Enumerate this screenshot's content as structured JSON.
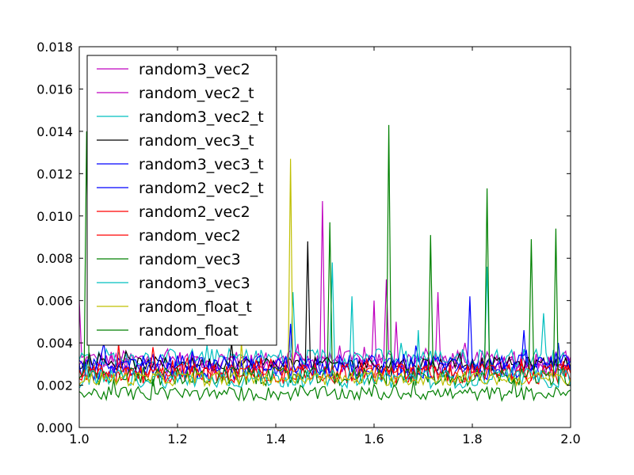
{
  "chart_data": {
    "type": "line",
    "title": "",
    "xlabel": "",
    "ylabel": "",
    "xlim": [
      1.0,
      2.0
    ],
    "ylim": [
      0.0,
      0.018
    ],
    "grid": false,
    "legend_position": "upper-left",
    "x_ticks": [
      "1.0",
      "1.2",
      "1.4",
      "1.6",
      "1.8",
      "2.0"
    ],
    "y_ticks": [
      "0.000",
      "0.002",
      "0.004",
      "0.006",
      "0.008",
      "0.010",
      "0.012",
      "0.014",
      "0.016",
      "0.018"
    ],
    "x_tick_values": [
      1.0,
      1.2,
      1.4,
      1.6,
      1.8,
      2.0
    ],
    "y_tick_values": [
      0.0,
      0.002,
      0.004,
      0.006,
      0.008,
      0.01,
      0.012,
      0.014,
      0.016,
      0.018
    ],
    "x_start": 1.0,
    "x_end": 2.0,
    "points_per_series": 201,
    "series": [
      {
        "name": "random3_vec2",
        "color": "#bf00bf",
        "base": 0.0032,
        "noise": 0.0002,
        "spikes": [
          [
            1.0,
            0.006
          ],
          [
            1.495,
            0.0107
          ],
          [
            1.625,
            0.007
          ],
          [
            1.728,
            0.0064
          ],
          [
            1.785,
            0.004
          ]
        ]
      },
      {
        "name": "random_vec2_t",
        "color": "#bf00bf",
        "base": 0.003,
        "noise": 0.0002,
        "spikes": [
          [
            1.6,
            0.006
          ],
          [
            1.645,
            0.005
          ],
          [
            1.78,
            0.0035
          ],
          [
            1.885,
            0.0036
          ]
        ]
      },
      {
        "name": "random3_vec2_t",
        "color": "#00bfbf",
        "base": 0.0033,
        "noise": 0.0002,
        "spikes": [
          [
            1.435,
            0.0064
          ],
          [
            1.515,
            0.0078
          ],
          [
            1.83,
            0.0076
          ],
          [
            1.945,
            0.0054
          ]
        ]
      },
      {
        "name": "random_vec3_t",
        "color": "#000000",
        "base": 0.003,
        "noise": 0.00015,
        "spikes": [
          [
            1.465,
            0.0088
          ],
          [
            1.31,
            0.004
          ]
        ]
      },
      {
        "name": "random3_vec3_t",
        "color": "#0000ff",
        "base": 0.0027,
        "noise": 0.0002,
        "spikes": [
          [
            1.795,
            0.0062
          ],
          [
            1.905,
            0.0046
          ],
          [
            1.975,
            0.004
          ]
        ]
      },
      {
        "name": "random2_vec2_t",
        "color": "#0000ff",
        "base": 0.003,
        "noise": 0.0002,
        "spikes": [
          [
            1.43,
            0.0049
          ],
          [
            1.05,
            0.004
          ]
        ]
      },
      {
        "name": "random2_vec2",
        "color": "#ff0000",
        "base": 0.0025,
        "noise": 0.0002,
        "spikes": [
          [
            1.08,
            0.004
          ],
          [
            1.22,
            0.0033
          ]
        ]
      },
      {
        "name": "random_vec2",
        "color": "#ff0000",
        "base": 0.0026,
        "noise": 0.0002,
        "spikes": [
          [
            1.15,
            0.0038
          ],
          [
            1.37,
            0.0033
          ]
        ]
      },
      {
        "name": "random_vec3",
        "color": "#008000",
        "base": 0.0024,
        "noise": 0.0002,
        "spikes": [
          [
            1.015,
            0.014
          ],
          [
            1.51,
            0.0097
          ],
          [
            1.63,
            0.0143
          ],
          [
            1.715,
            0.0091
          ],
          [
            1.832,
            0.0113
          ],
          [
            1.92,
            0.0089
          ],
          [
            1.968,
            0.0094
          ]
        ]
      },
      {
        "name": "random3_vec3",
        "color": "#00bfbf",
        "base": 0.0023,
        "noise": 0.0002,
        "spikes": [
          [
            1.555,
            0.0062
          ],
          [
            1.69,
            0.0046
          ]
        ]
      },
      {
        "name": "random_float_t",
        "color": "#bfbf00",
        "base": 0.0023,
        "noise": 0.00015,
        "spikes": [
          [
            1.432,
            0.0127
          ],
          [
            1.33,
            0.004
          ]
        ]
      },
      {
        "name": "random_float",
        "color": "#007f00",
        "base": 0.0016,
        "noise": 0.00015,
        "spikes": [
          [
            1.15,
            0.0023
          ],
          [
            1.68,
            0.0022
          ]
        ]
      }
    ]
  }
}
